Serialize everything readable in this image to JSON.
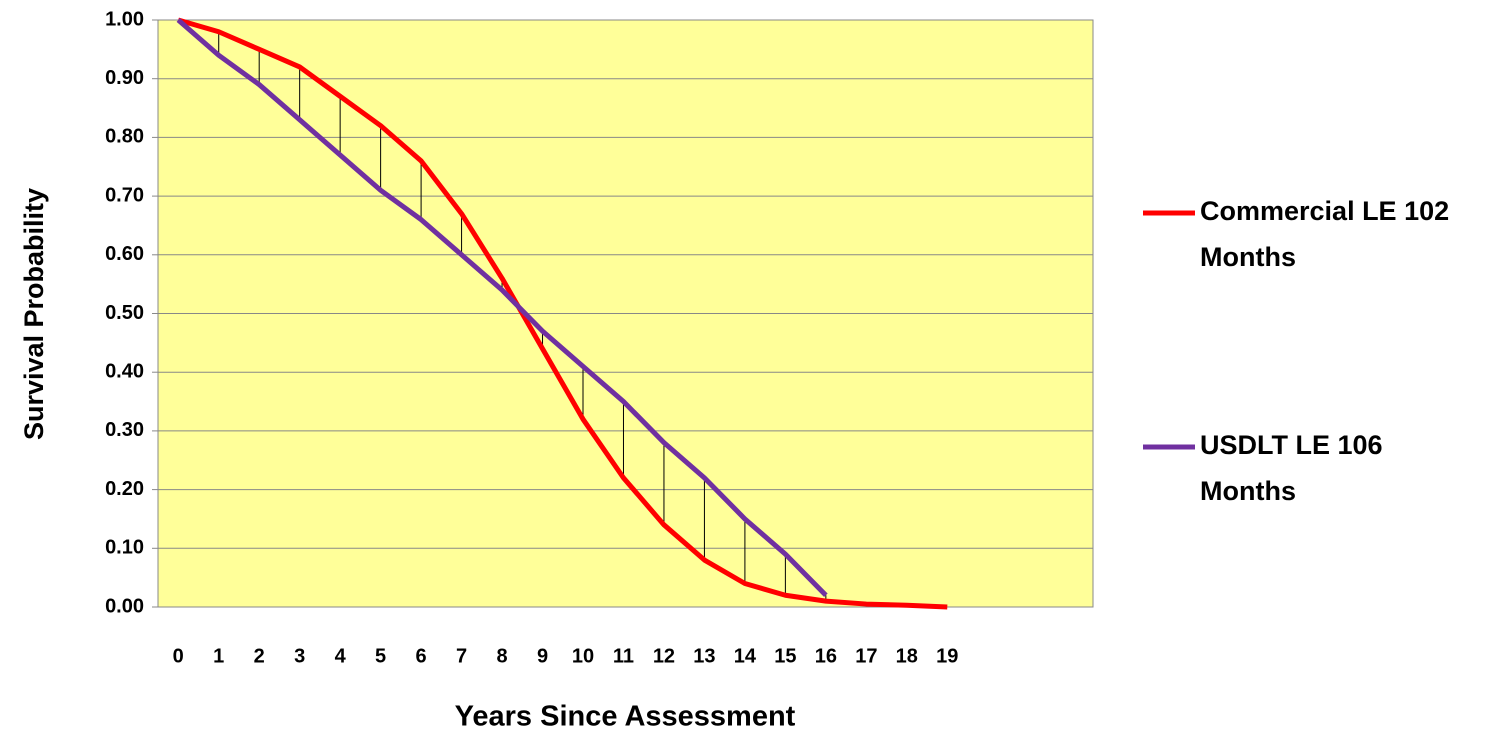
{
  "chart_data": {
    "type": "line",
    "x_label": "Years Since Assessment",
    "y_label": "Survival Probability",
    "x": [
      0,
      1,
      2,
      3,
      4,
      5,
      6,
      7,
      8,
      9,
      10,
      11,
      12,
      13,
      14,
      15,
      16,
      17,
      18,
      19
    ],
    "xlim": [
      -0.5,
      22.6
    ],
    "xticks": [
      0,
      1,
      2,
      3,
      4,
      5,
      6,
      7,
      8,
      9,
      10,
      11,
      12,
      13,
      14,
      15,
      16,
      17,
      18,
      19
    ],
    "ylim": [
      0,
      1
    ],
    "yticks": [
      {
        "value": 0,
        "label": "0.00"
      },
      {
        "value": 0.1,
        "label": "0.10"
      },
      {
        "value": 0.2,
        "label": "0.20"
      },
      {
        "value": 0.3,
        "label": "0.30"
      },
      {
        "value": 0.4,
        "label": "0.40"
      },
      {
        "value": 0.5,
        "label": "0.50"
      },
      {
        "value": 0.6,
        "label": "0.60"
      },
      {
        "value": 0.7,
        "label": "0.70"
      },
      {
        "value": 0.8,
        "label": "0.80"
      },
      {
        "value": 0.9,
        "label": "0.90"
      },
      {
        "value": 1,
        "label": "1.00"
      }
    ],
    "grid": true,
    "plot_background": "#ffff99",
    "drop_lines": true,
    "legend": "right",
    "series": [
      {
        "name": "Commercial LE 102 Months",
        "color": "#ff0000",
        "values": [
          1.0,
          0.98,
          0.95,
          0.92,
          0.87,
          0.82,
          0.76,
          0.67,
          0.56,
          0.44,
          0.32,
          0.22,
          0.14,
          0.08,
          0.04,
          0.02,
          0.01,
          0.005,
          0.003,
          0.0
        ]
      },
      {
        "name": "USDLT LE 106 Months",
        "color": "#7030a0",
        "values": [
          1.0,
          0.94,
          0.89,
          0.83,
          0.77,
          0.71,
          0.66,
          0.6,
          0.54,
          0.47,
          0.41,
          0.35,
          0.28,
          0.22,
          0.15,
          0.09,
          0.02,
          null,
          null,
          null
        ]
      }
    ]
  }
}
